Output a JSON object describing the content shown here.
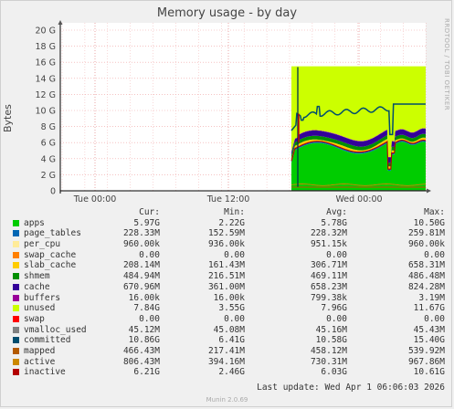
{
  "chart_data": {
    "type": "area",
    "title": "Memory usage - by day",
    "ylabel": "Bytes",
    "ylim": [
      0,
      21
    ],
    "yticks": [
      "0",
      "2 G",
      "4 G",
      "6 G",
      "8 G",
      "10 G",
      "12 G",
      "14 G",
      "16 G",
      "18 G",
      "20 G"
    ],
    "xticks": [
      "Tue 00:00",
      "Tue 12:00",
      "Wed 00:00"
    ],
    "side_text": "RRDTOOL / TOBI OETIKER",
    "columns": [
      "Cur:",
      "Min:",
      "Avg:",
      "Max:"
    ],
    "series": [
      {
        "name": "apps",
        "color": "#00cc00",
        "cur": "5.97G",
        "min": "2.22G",
        "avg": "5.78G",
        "max": "10.50G"
      },
      {
        "name": "page_tables",
        "color": "#0066b3",
        "cur": "228.33M",
        "min": "152.59M",
        "avg": "228.32M",
        "max": "259.81M"
      },
      {
        "name": "per_cpu",
        "color": "#ffeb99",
        "cur": "960.00k",
        "min": "936.00k",
        "avg": "951.15k",
        "max": "960.00k"
      },
      {
        "name": "swap_cache",
        "color": "#ff8000",
        "cur": "0.00",
        "min": "0.00",
        "avg": "0.00",
        "max": "0.00"
      },
      {
        "name": "slab_cache",
        "color": "#ffcc00",
        "cur": "208.14M",
        "min": "161.43M",
        "avg": "306.71M",
        "max": "658.31M"
      },
      {
        "name": "shmem",
        "color": "#008f00",
        "cur": "484.94M",
        "min": "216.51M",
        "avg": "469.11M",
        "max": "486.48M"
      },
      {
        "name": "cache",
        "color": "#330099",
        "cur": "670.96M",
        "min": "361.00M",
        "avg": "658.23M",
        "max": "824.28M"
      },
      {
        "name": "buffers",
        "color": "#990099",
        "cur": "16.00k",
        "min": "16.00k",
        "avg": "799.38k",
        "max": "3.19M"
      },
      {
        "name": "unused",
        "color": "#ccff00",
        "cur": "7.84G",
        "min": "3.55G",
        "avg": "7.96G",
        "max": "11.67G"
      },
      {
        "name": "swap",
        "color": "#ff0000",
        "cur": "0.00",
        "min": "0.00",
        "avg": "0.00",
        "max": "0.00"
      },
      {
        "name": "vmalloc_used",
        "color": "#808080",
        "cur": "45.12M",
        "min": "45.08M",
        "avg": "45.16M",
        "max": "45.43M"
      },
      {
        "name": "committed",
        "color": "#004d6e",
        "cur": "10.86G",
        "min": "6.41G",
        "avg": "10.58G",
        "max": "15.40G"
      },
      {
        "name": "mapped",
        "color": "#b35a00",
        "cur": "466.43M",
        "min": "217.41M",
        "avg": "458.12M",
        "max": "539.92M"
      },
      {
        "name": "active",
        "color": "#cc8800",
        "cur": "806.43M",
        "min": "394.16M",
        "avg": "730.31M",
        "max": "967.86M"
      },
      {
        "name": "inactive",
        "color": "#b30000",
        "cur": "6.21G",
        "min": "2.46G",
        "avg": "6.03G",
        "max": "10.61G"
      }
    ],
    "last_update": "Last update: Wed Apr  1 06:06:03 2026",
    "footer": "Munin 2.0.69"
  }
}
